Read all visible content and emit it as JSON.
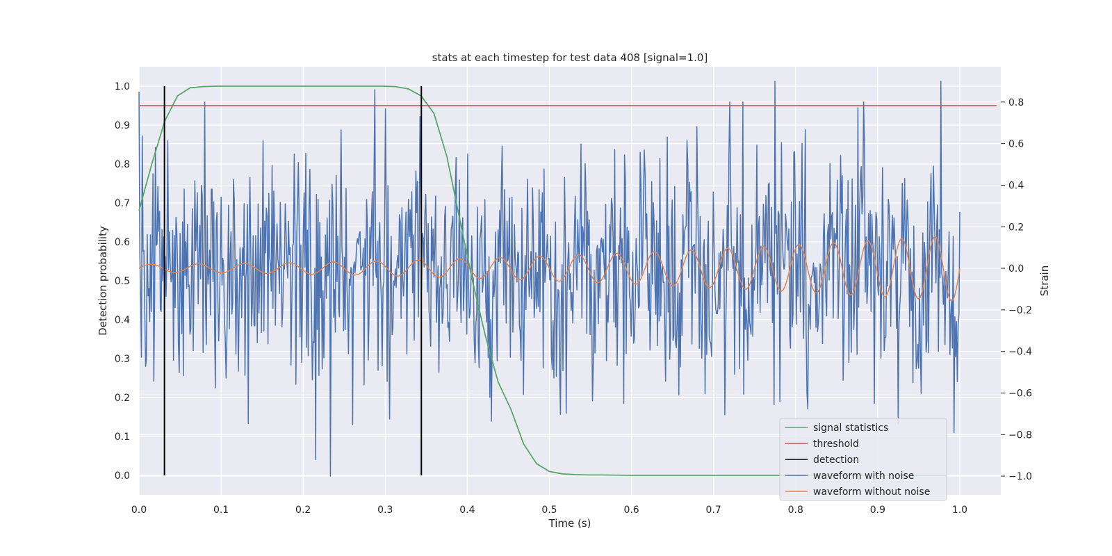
{
  "chart_data": {
    "type": "line",
    "title": "stats at each timestep for test data 408 [signal=1.0]",
    "xlabel": "Time (s)",
    "ylabel": "Detection probability",
    "y2label": "Strain",
    "xlim": [
      0.0,
      1.05
    ],
    "ylim": [
      -0.05,
      1.05
    ],
    "y2lim": [
      -1.09,
      0.97
    ],
    "x_ticks": [
      0.0,
      0.1,
      0.2,
      0.3,
      0.4,
      0.5,
      0.6,
      0.7,
      0.8,
      0.9,
      1.0
    ],
    "y_ticks": [
      0.0,
      0.1,
      0.2,
      0.3,
      0.4,
      0.5,
      0.6,
      0.7,
      0.8,
      0.9,
      1.0
    ],
    "y2_ticks": [
      -1.0,
      -0.8,
      -0.6,
      -0.4,
      -0.2,
      0.0,
      0.2,
      0.4,
      0.6,
      0.8
    ],
    "x_tick_labels": [
      "0.0",
      "0.1",
      "0.2",
      "0.3",
      "0.4",
      "0.5",
      "0.6",
      "0.7",
      "0.8",
      "0.9",
      "1.0"
    ],
    "y_tick_labels": [
      "0.0",
      "0.1",
      "0.2",
      "0.3",
      "0.4",
      "0.5",
      "0.6",
      "0.7",
      "0.8",
      "0.9",
      "1.0"
    ],
    "y2_tick_labels": [
      "−1.0",
      "−0.8",
      "−0.6",
      "−0.4",
      "−0.2",
      "0.0",
      "0.2",
      "0.4",
      "0.6",
      "0.8"
    ],
    "grid": true,
    "legend_position": "bottom-right",
    "series": [
      {
        "name": "signal statistics",
        "axis": "left",
        "color": "#55a868",
        "x": [
          0.0,
          0.0156,
          0.0313,
          0.0469,
          0.0625,
          0.0781,
          0.0938,
          0.1094,
          0.125,
          0.1406,
          0.1563,
          0.1719,
          0.1875,
          0.2031,
          0.2188,
          0.2344,
          0.25,
          0.2656,
          0.2813,
          0.2969,
          0.3125,
          0.3281,
          0.3438,
          0.3594,
          0.375,
          0.3906,
          0.4063,
          0.4219,
          0.4375,
          0.4531,
          0.4688,
          0.4844,
          0.5,
          0.5156,
          0.5313,
          0.5469,
          0.5625,
          0.6,
          0.7,
          0.8,
          0.9,
          0.984
        ],
        "y": [
          0.68,
          0.8,
          0.91,
          0.975,
          0.996,
          0.999,
          1.0,
          1.0,
          1.0,
          1.0,
          1.0,
          1.0,
          1.0,
          1.0,
          1.0,
          1.0,
          1.0,
          1.0,
          1.0,
          1.0,
          0.999,
          0.993,
          0.975,
          0.93,
          0.82,
          0.66,
          0.5,
          0.36,
          0.24,
          0.17,
          0.08,
          0.03,
          0.01,
          0.004,
          0.002,
          0.001,
          0.001,
          0.0,
          0.0,
          0.0,
          0.0,
          0.0
        ]
      },
      {
        "name": "threshold",
        "axis": "left",
        "color": "#c44e52",
        "x": [
          0.0,
          1.045
        ],
        "y": [
          0.95,
          0.95
        ]
      },
      {
        "name": "detection",
        "axis": "left",
        "color": "#000000",
        "x_positions": [
          0.031,
          0.344
        ],
        "y_range": [
          0.0,
          1.0
        ]
      },
      {
        "name": "waveform with noise",
        "axis": "right",
        "color": "#4c72b0",
        "x_range": [
          0.0,
          1.0
        ],
        "n_points": 1000,
        "highlights": [
          {
            "x": 0.0,
            "y": 0.85
          },
          {
            "x": 0.233,
            "y": -1.0
          },
          {
            "x": 0.287,
            "y": 0.86
          },
          {
            "x": 0.342,
            "y": 0.73
          },
          {
            "x": 0.775,
            "y": 0.9
          },
          {
            "x": 0.977,
            "y": 0.9
          },
          {
            "x": 0.925,
            "y": -0.75
          }
        ]
      },
      {
        "name": "waveform without noise",
        "axis": "right",
        "color": "#dd8452",
        "x_range": [
          0.0,
          1.0
        ],
        "n_points": 600,
        "amplitude_start": 0.02,
        "amplitude_end": 0.16,
        "freq_start_hz": 17,
        "freq_end_hz": 25
      }
    ]
  }
}
